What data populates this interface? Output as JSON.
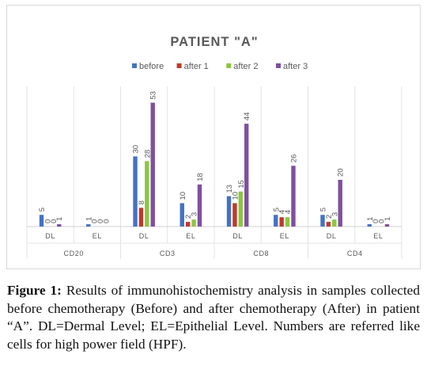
{
  "chart_data": {
    "type": "bar",
    "title": "PATIENT \"A\"",
    "groups": [
      "CD20",
      "CD3",
      "CD8",
      "CD4"
    ],
    "categories": [
      "DL",
      "EL",
      "DL",
      "EL",
      "DL",
      "EL",
      "DL",
      "EL"
    ],
    "series": [
      {
        "name": "before",
        "color": "#4472c4",
        "values": [
          5,
          1,
          30,
          10,
          13,
          5,
          5,
          1
        ]
      },
      {
        "name": "after 1",
        "color": "#c0392b",
        "values": [
          0,
          0,
          8,
          2,
          10,
          4,
          2,
          0
        ]
      },
      {
        "name": "after 2",
        "color": "#8cc63f",
        "values": [
          0,
          0,
          28,
          3,
          15,
          4,
          3,
          0
        ]
      },
      {
        "name": "after 3",
        "color": "#7e50a0",
        "values": [
          1,
          0,
          53,
          18,
          44,
          26,
          20,
          1
        ]
      }
    ],
    "ylim": [
      0,
      60
    ],
    "grid": false,
    "legend_position": "top"
  },
  "caption": {
    "label": "Figure 1:",
    "text": " Results of immunohistochemistry analysis in samples collected before chemotherapy (Before) and after chemotherapy (After) in patient “A”. DL=Dermal Level; EL=Epithelial Level. Numbers are referred like cells for high power field (HPF)."
  }
}
